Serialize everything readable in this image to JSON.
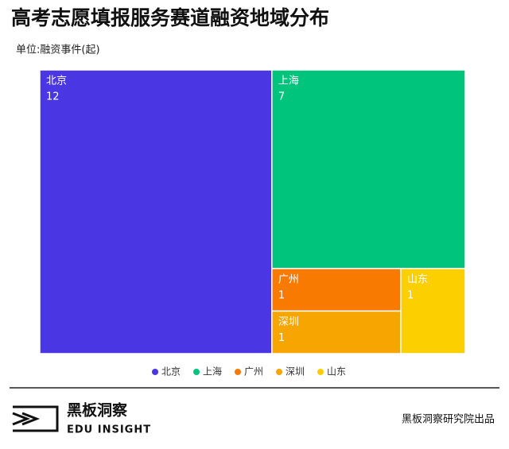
{
  "chart_data": {
    "type": "treemap",
    "title": "高考志愿填报服务赛道融资地域分布",
    "subtitle": "单位:融资事件(起)",
    "categories": [
      "北京",
      "上海",
      "广州",
      "深圳",
      "山东"
    ],
    "values": [
      12,
      7,
      1,
      1,
      1
    ],
    "colors": [
      "#4a36e2",
      "#00c47c",
      "#f97a00",
      "#f7a500",
      "#fccf00"
    ],
    "legend": "bottom"
  },
  "footer": {
    "brand": "黑板洞察",
    "brand_en": "EDU INSIGHT",
    "credit": "黑板洞察研究院出品"
  }
}
